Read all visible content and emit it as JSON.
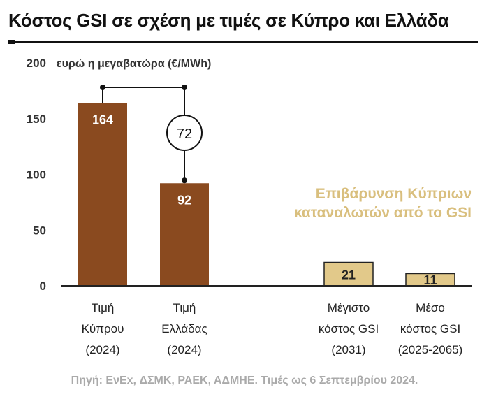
{
  "title": "Κόστος GSI σε σχέση με τιμές σε Κύπρο και Ελλάδα",
  "source": "Πηγή: ΕνΕx, ΔΣΜΚ, ΡΑΕΚ, ΑΔΜΗΕ. Τιμές ως 6 Σεπτεμβρίου 2024.",
  "colors": {
    "brown": "#8a4a1f",
    "tan": "#e2c98a",
    "annotation": "#d9bf7e",
    "axis": "#222222"
  },
  "chart_data": {
    "type": "bar",
    "title": "Κόστος GSI σε σχέση με τιμές σε Κύπρο και Ελλάδα",
    "ylabel": "ευρώ η μεγαβατώρα (€/MWh)",
    "ylim": [
      0,
      200
    ],
    "yticks": [
      0,
      50,
      100,
      150,
      200
    ],
    "grid": false,
    "categories": [
      [
        "Τιμή",
        "Κύπρου",
        "(2024)"
      ],
      [
        "Τιμή",
        "Ελλάδας",
        "(2024)"
      ],
      [
        "Μέγιστο",
        "κόστος GSI",
        "(2031)"
      ],
      [
        "Μέσο",
        "κόστος GSI",
        "(2025-2065)"
      ]
    ],
    "values": [
      164,
      92,
      21,
      11
    ],
    "bar_colors": [
      "#8a4a1f",
      "#8a4a1f",
      "#e2c98a",
      "#e2c98a"
    ],
    "difference": {
      "from": 0,
      "to": 1,
      "value": 72,
      "label": "72"
    },
    "annotation": [
      "Επιβάρυνση Κύπριων",
      "καταναλωτών από το GSI"
    ]
  }
}
